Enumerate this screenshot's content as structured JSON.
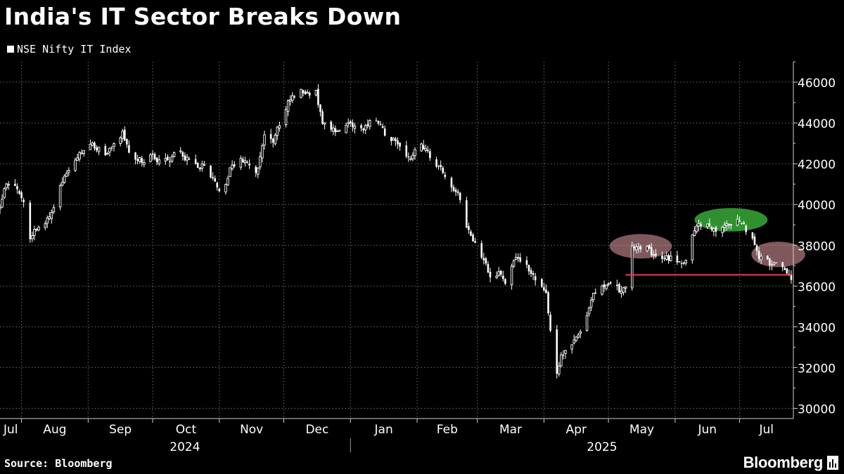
{
  "chart_data": {
    "type": "candlestick",
    "title": "India's IT Sector Breaks Down",
    "legend": [
      {
        "name": "NSE Nifty IT Index",
        "color": "#ffffff"
      }
    ],
    "legend_position": "top-left",
    "ylim": [
      29500,
      47000
    ],
    "y_axis_position": "right",
    "yticks": [
      30000,
      32000,
      34000,
      36000,
      38000,
      40000,
      42000,
      44000,
      46000
    ],
    "grid": true,
    "x_start": "2024-07-22",
    "x_end": "2025-07-26",
    "months": [
      {
        "label": "Jul",
        "date": "2024-07-22"
      },
      {
        "label": "Aug",
        "date": "2024-08-01"
      },
      {
        "label": "Sep",
        "date": "2024-09-01"
      },
      {
        "label": "Oct",
        "date": "2024-10-01"
      },
      {
        "label": "Nov",
        "date": "2024-11-01"
      },
      {
        "label": "Dec",
        "date": "2024-12-01"
      },
      {
        "label": "Jan",
        "date": "2025-01-01"
      },
      {
        "label": "Feb",
        "date": "2025-02-01"
      },
      {
        "label": "Mar",
        "date": "2025-03-01"
      },
      {
        "label": "Apr",
        "date": "2025-04-01"
      },
      {
        "label": "May",
        "date": "2025-05-01"
      },
      {
        "label": "Jun",
        "date": "2025-06-01"
      },
      {
        "label": "Jul",
        "date": "2025-07-01"
      }
    ],
    "years": [
      {
        "label": "2024",
        "center_date": "2024-10-16"
      },
      {
        "label": "2025",
        "center_date": "2025-04-28"
      }
    ],
    "year_divider_date": "2025-01-01",
    "anchors": [
      [
        "2024-07-22",
        39800
      ],
      [
        "2024-07-24",
        40900
      ],
      [
        "2024-07-27",
        41100
      ],
      [
        "2024-07-30",
        40800
      ],
      [
        "2024-08-02",
        40200
      ],
      [
        "2024-08-05",
        38400
      ],
      [
        "2024-08-08",
        38900
      ],
      [
        "2024-08-12",
        39100
      ],
      [
        "2024-08-15",
        39500
      ],
      [
        "2024-08-18",
        40700
      ],
      [
        "2024-08-21",
        41400
      ],
      [
        "2024-08-24",
        41900
      ],
      [
        "2024-08-28",
        42500
      ],
      [
        "2024-09-01",
        43000
      ],
      [
        "2024-09-05",
        42800
      ],
      [
        "2024-09-09",
        42300
      ],
      [
        "2024-09-13",
        43000
      ],
      [
        "2024-09-17",
        43500
      ],
      [
        "2024-09-21",
        42300
      ],
      [
        "2024-09-26",
        42100
      ],
      [
        "2024-10-01",
        42400
      ],
      [
        "2024-10-05",
        42000
      ],
      [
        "2024-10-09",
        42200
      ],
      [
        "2024-10-13",
        42700
      ],
      [
        "2024-10-17",
        42200
      ],
      [
        "2024-10-21",
        41900
      ],
      [
        "2024-10-25",
        42000
      ],
      [
        "2024-10-29",
        41300
      ],
      [
        "2024-11-02",
        40400
      ],
      [
        "2024-11-06",
        41700
      ],
      [
        "2024-11-10",
        42300
      ],
      [
        "2024-11-14",
        42000
      ],
      [
        "2024-11-18",
        41400
      ],
      [
        "2024-11-22",
        43300
      ],
      [
        "2024-11-26",
        43100
      ],
      [
        "2024-11-30",
        44200
      ],
      [
        "2024-12-04",
        45200
      ],
      [
        "2024-12-09",
        45700
      ],
      [
        "2024-12-13",
        45300
      ],
      [
        "2024-12-16",
        45500
      ],
      [
        "2024-12-19",
        44100
      ],
      [
        "2024-12-22",
        43800
      ],
      [
        "2024-12-26",
        43600
      ],
      [
        "2024-12-30",
        43800
      ],
      [
        "2025-01-03",
        44000
      ],
      [
        "2025-01-07",
        43600
      ],
      [
        "2025-01-11",
        44200
      ],
      [
        "2025-01-15",
        43800
      ],
      [
        "2025-01-18",
        43300
      ],
      [
        "2025-01-22",
        43200
      ],
      [
        "2025-01-26",
        42300
      ],
      [
        "2025-01-29",
        42100
      ],
      [
        "2025-02-02",
        43000
      ],
      [
        "2025-02-05",
        42700
      ],
      [
        "2025-02-08",
        42200
      ],
      [
        "2025-02-12",
        41800
      ],
      [
        "2025-02-16",
        41000
      ],
      [
        "2025-02-20",
        40600
      ],
      [
        "2025-02-23",
        39200
      ],
      [
        "2025-02-27",
        38300
      ],
      [
        "2025-03-02",
        37500
      ],
      [
        "2025-03-05",
        37000
      ],
      [
        "2025-03-08",
        36300
      ],
      [
        "2025-03-11",
        36800
      ],
      [
        "2025-03-14",
        36100
      ],
      [
        "2025-03-18",
        37400
      ],
      [
        "2025-03-22",
        37300
      ],
      [
        "2025-03-26",
        36700
      ],
      [
        "2025-03-30",
        36000
      ],
      [
        "2025-04-02",
        35600
      ],
      [
        "2025-04-04",
        33800
      ],
      [
        "2025-04-07",
        31700
      ],
      [
        "2025-04-09",
        32700
      ],
      [
        "2025-04-12",
        32900
      ],
      [
        "2025-04-16",
        33400
      ],
      [
        "2025-04-20",
        34000
      ],
      [
        "2025-04-24",
        35600
      ],
      [
        "2025-04-28",
        35900
      ],
      [
        "2025-05-02",
        36100
      ],
      [
        "2025-05-06",
        35800
      ],
      [
        "2025-05-09",
        35900
      ],
      [
        "2025-05-12",
        37900
      ],
      [
        "2025-05-15",
        38000
      ],
      [
        "2025-05-19",
        37800
      ],
      [
        "2025-05-23",
        37400
      ],
      [
        "2025-05-27",
        37300
      ],
      [
        "2025-05-30",
        37400
      ],
      [
        "2025-06-03",
        37200
      ],
      [
        "2025-06-06",
        37200
      ],
      [
        "2025-06-09",
        38500
      ],
      [
        "2025-06-12",
        39000
      ],
      [
        "2025-06-16",
        38900
      ],
      [
        "2025-06-20",
        38600
      ],
      [
        "2025-06-24",
        39000
      ],
      [
        "2025-06-28",
        39200
      ],
      [
        "2025-07-02",
        39100
      ],
      [
        "2025-07-06",
        38500
      ],
      [
        "2025-07-10",
        37500
      ],
      [
        "2025-07-14",
        37200
      ],
      [
        "2025-07-18",
        37000
      ],
      [
        "2025-07-21",
        36800
      ],
      [
        "2025-07-24",
        36500
      ],
      [
        "2025-07-25",
        36300
      ]
    ],
    "annotations": [
      {
        "type": "ellipse",
        "center_date": "2025-05-16",
        "center_value": 37950,
        "width_days": 29,
        "height_value": 1200,
        "fill": "#e8a0a8",
        "opacity": 0.55
      },
      {
        "type": "ellipse",
        "center_date": "2025-06-27",
        "center_value": 39250,
        "width_days": 34,
        "height_value": 1150,
        "fill": "#40c040",
        "opacity": 0.75
      },
      {
        "type": "ellipse",
        "center_date": "2025-07-19",
        "center_value": 37550,
        "width_days": 25,
        "height_value": 1250,
        "fill": "#e8a0a8",
        "opacity": 0.55
      },
      {
        "type": "line",
        "date_start": "2025-05-09",
        "date_end": "2025-07-25",
        "value": 36550,
        "color": "#e0405a"
      }
    ]
  },
  "footer": {
    "source": "Source: Bloomberg",
    "brand": "Bloomberg"
  }
}
